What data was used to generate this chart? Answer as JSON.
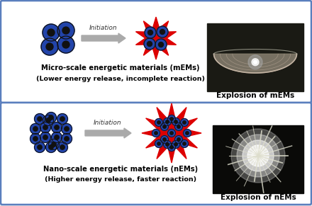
{
  "fig_width": 4.4,
  "fig_height": 2.91,
  "dpi": 100,
  "bg_color": "#e8e8e8",
  "panel_bg": "#ffffff",
  "panel_border_color": "#5b7fbe",
  "top_panel": {
    "title_line1": "Micro-scale energetic materials (mEMs)",
    "title_line2": "(Lower energy release, incomplete reaction)",
    "photo_label": "Explosion of mEMs",
    "particle_color_blue": "#2244aa",
    "particle_color_dark": "#111111",
    "burst_red": "#dd0000",
    "burst_dark": "#111111",
    "arrow_color": "#aaaaaa",
    "initiation_text": "Initiation"
  },
  "bottom_panel": {
    "title_line1": "Nano-scale energetic materials (nEMs)",
    "title_line2": "(Higher energy release, faster reaction)",
    "photo_label": "Explosion of nEMs",
    "particle_color_blue": "#2244aa",
    "particle_color_dark": "#111111",
    "burst_red": "#dd0000",
    "burst_dark": "#111111",
    "arrow_color": "#aaaaaa",
    "initiation_text": "Initiation"
  },
  "title_fontsize": 7.2,
  "subtitle_fontsize": 6.8,
  "label_fontsize": 7.5,
  "initiation_fontsize": 6.5
}
